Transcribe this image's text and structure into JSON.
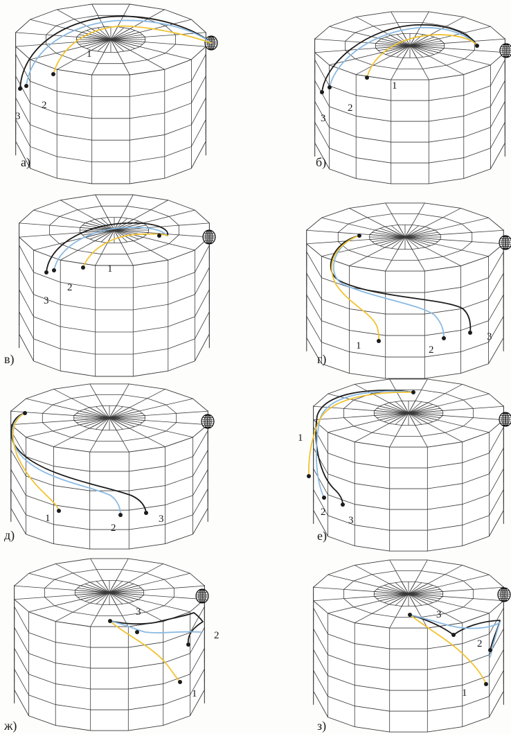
{
  "panels": [
    {
      "label": "а)",
      "tracks": [
        {
          "name": "1",
          "label": "1",
          "color_key": "yellow"
        },
        {
          "name": "2",
          "label": "2",
          "color_key": "blue"
        },
        {
          "name": "3",
          "label": "3",
          "color_key": "black"
        }
      ]
    },
    {
      "label": "б)",
      "tracks": [
        {
          "name": "1",
          "label": "1",
          "color_key": "yellow"
        },
        {
          "name": "2",
          "label": "2",
          "color_key": "blue"
        },
        {
          "name": "3",
          "label": "3",
          "color_key": "black"
        }
      ]
    },
    {
      "label": "в)",
      "tracks": [
        {
          "name": "1",
          "label": "1",
          "color_key": "yellow"
        },
        {
          "name": "2",
          "label": "2",
          "color_key": "blue"
        },
        {
          "name": "3",
          "label": "3",
          "color_key": "black"
        }
      ]
    },
    {
      "label": "г)",
      "tracks": [
        {
          "name": "1",
          "label": "1",
          "color_key": "yellow"
        },
        {
          "name": "2",
          "label": "2",
          "color_key": "blue"
        },
        {
          "name": "3",
          "label": "3",
          "color_key": "black"
        }
      ]
    },
    {
      "label": "д)",
      "tracks": [
        {
          "name": "1",
          "label": "1",
          "color_key": "yellow"
        },
        {
          "name": "2",
          "label": "2",
          "color_key": "blue"
        },
        {
          "name": "3",
          "label": "3",
          "color_key": "black"
        }
      ]
    },
    {
      "label": "е)",
      "tracks": [
        {
          "name": "1",
          "label": "1",
          "color_key": "yellow"
        },
        {
          "name": "2",
          "label": "2",
          "color_key": "blue"
        },
        {
          "name": "3",
          "label": "3",
          "color_key": "black"
        }
      ]
    },
    {
      "label": "ж)",
      "tracks": [
        {
          "name": "1",
          "label": "1",
          "color_key": "yellow"
        },
        {
          "name": "2",
          "label": "2",
          "color_key": "blue"
        },
        {
          "name": "3",
          "label": "3",
          "color_key": "black"
        }
      ]
    },
    {
      "label": "з)",
      "tracks": [
        {
          "name": "1",
          "label": "1",
          "color_key": "yellow"
        },
        {
          "name": "2",
          "label": "2",
          "color_key": "blue"
        },
        {
          "name": "3",
          "label": "3",
          "color_key": "black"
        }
      ]
    }
  ],
  "colors": {
    "yellow": "#f2c230",
    "blue": "#8ab9e2",
    "black": "#1b1b1b",
    "grid": "#3a3a3a"
  },
  "icons": {
    "target": "wireframe-sphere-icon"
  }
}
